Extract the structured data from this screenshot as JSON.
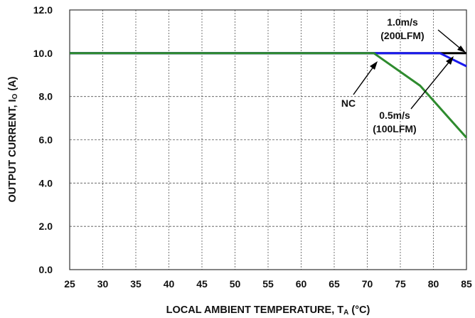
{
  "chart_data": {
    "type": "line",
    "xlabel": "LOCAL AMBIENT TEMPERATURE, T",
    "xlabel_sub": "A",
    "xlabel_unit": " (°C)",
    "ylabel": "OUTPUT CURRENT, I",
    "ylabel_sub": "O",
    "ylabel_unit": " (A)",
    "xlim": [
      25,
      85
    ],
    "ylim": [
      0,
      12
    ],
    "xticks": [
      "25",
      "30",
      "35",
      "40",
      "45",
      "50",
      "55",
      "60",
      "65",
      "70",
      "75",
      "80",
      "85"
    ],
    "yticks": [
      "0.0",
      "2.0",
      "4.0",
      "6.0",
      "8.0",
      "10.0",
      "12.0"
    ],
    "grid": true,
    "series": [
      {
        "name": "1.0m/s (200LFM)",
        "color": "#000000",
        "x": [
          25,
          85
        ],
        "y": [
          10.0,
          10.0
        ]
      },
      {
        "name": "0.5m/s (100LFM)",
        "color": "#1a1aee",
        "x": [
          25,
          81,
          85
        ],
        "y": [
          10.0,
          10.0,
          9.4
        ]
      },
      {
        "name": "NC",
        "color": "#2e8b2e",
        "x": [
          25,
          71,
          78,
          85
        ],
        "y": [
          10.0,
          10.0,
          8.5,
          6.1
        ]
      }
    ],
    "annotations": [
      {
        "id": "a200",
        "lines": [
          "1.0m/s",
          "(200LFM)"
        ]
      },
      {
        "id": "a100",
        "lines": [
          "0.5m/s",
          "(100LFM)"
        ]
      },
      {
        "id": "anc",
        "lines": [
          "NC"
        ]
      }
    ]
  }
}
